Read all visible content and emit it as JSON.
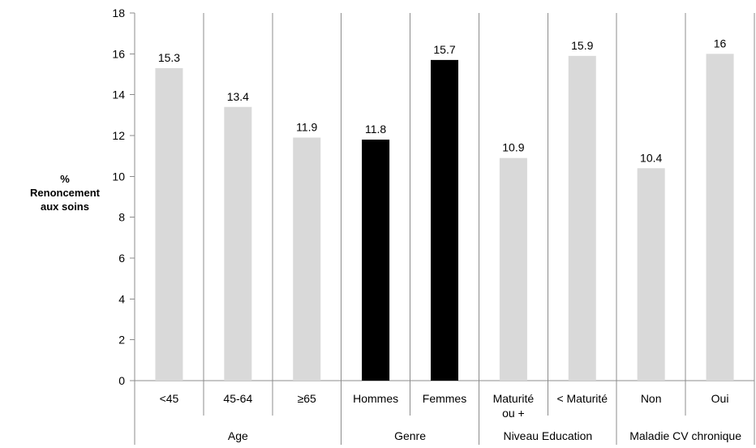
{
  "chart_data": {
    "type": "bar",
    "ylabel_lines": [
      "%",
      "Renoncement",
      "aux soins"
    ],
    "ylim": [
      0,
      18
    ],
    "yticks": [
      0,
      2,
      4,
      6,
      8,
      10,
      12,
      14,
      16,
      18
    ],
    "grid": false,
    "categories": [
      {
        "label": "<45",
        "value": 15.3,
        "color": "#d9d9d9"
      },
      {
        "label": "45-64",
        "value": 13.4,
        "color": "#d9d9d9"
      },
      {
        "label": "≥65",
        "value": 11.9,
        "color": "#d9d9d9"
      },
      {
        "label": "Hommes",
        "value": 11.8,
        "color": "#000000"
      },
      {
        "label": "Femmes",
        "value": 15.7,
        "color": "#000000"
      },
      {
        "label": "Maturité\nou +",
        "value": 10.9,
        "color": "#d9d9d9"
      },
      {
        "label": "< Maturité",
        "value": 15.9,
        "color": "#d9d9d9"
      },
      {
        "label": "Non",
        "value": 10.4,
        "color": "#d9d9d9"
      },
      {
        "label": "Oui",
        "value": 16,
        "color": "#d9d9d9"
      }
    ],
    "groups": [
      {
        "label": "Age",
        "count": 3
      },
      {
        "label": "Genre",
        "count": 2
      },
      {
        "label": "Niveau Education",
        "count": 2
      },
      {
        "label": "Maladie CV chronique",
        "count": 2
      }
    ]
  }
}
